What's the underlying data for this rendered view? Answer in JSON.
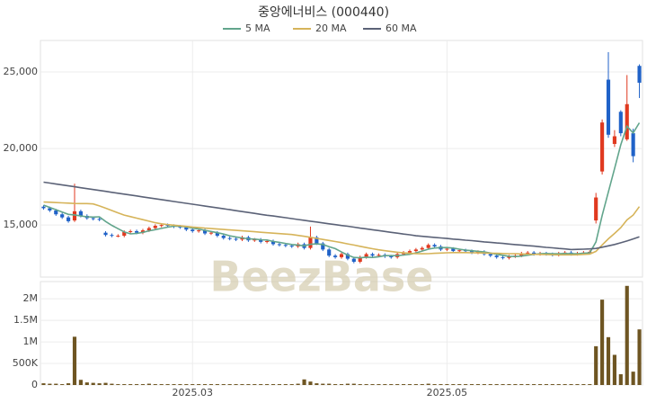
{
  "watermark": "BeezBase",
  "chart_data": [
    {
      "type": "candlestick",
      "title": "중앙에너비스 (000440)",
      "up_color": "#e0391f",
      "down_color": "#2062c8",
      "xlim": [
        -0.5,
        96.5
      ],
      "xticks": [
        {
          "value": 24,
          "label": "2025.03"
        },
        {
          "value": 65,
          "label": "2025.05"
        }
      ],
      "ylim": [
        11600,
        27060
      ],
      "yticks": [
        {
          "value": 15000,
          "label": "15,000"
        },
        {
          "value": 20000,
          "label": "20,000"
        },
        {
          "value": 25000,
          "label": "25,000"
        }
      ],
      "grid": true,
      "open": [
        16200,
        16100,
        15950,
        15700,
        15500,
        15300,
        15900,
        15600,
        15450,
        15400,
        14500,
        14350,
        14300,
        14300,
        14550,
        14600,
        14500,
        14650,
        14800,
        14950,
        15000,
        14950,
        14900,
        14850,
        14700,
        14600,
        14650,
        14450,
        14500,
        14300,
        14150,
        14100,
        14050,
        14200,
        14000,
        14050,
        13900,
        13950,
        13750,
        13700,
        13650,
        13600,
        13750,
        13500,
        14200,
        13800,
        13400,
        13000,
        12900,
        13100,
        12800,
        12600,
        12900,
        13100,
        13000,
        13050,
        12950,
        12900,
        13100,
        13200,
        13300,
        13400,
        13500,
        13700,
        13600,
        13400,
        13450,
        13300,
        13350,
        13300,
        13200,
        13250,
        13100,
        13000,
        12900,
        12850,
        12950,
        13000,
        13150,
        13200,
        13100,
        13150,
        13100,
        13050,
        13150,
        13200,
        13100,
        13150,
        13200,
        15300,
        18500,
        24500,
        20300,
        22400,
        20600,
        21000,
        25400
      ],
      "high": [
        16300,
        16200,
        16050,
        15800,
        15600,
        17700,
        16000,
        15700,
        15550,
        15500,
        14600,
        14450,
        14400,
        14650,
        14700,
        14700,
        14750,
        14900,
        15050,
        15100,
        15100,
        15050,
        15000,
        14950,
        14800,
        14750,
        14750,
        14600,
        14600,
        14400,
        14250,
        14200,
        14300,
        14300,
        14150,
        14150,
        14050,
        14050,
        13850,
        13800,
        13750,
        13850,
        13850,
        14900,
        14300,
        13900,
        13500,
        13100,
        13200,
        13200,
        12900,
        13000,
        13200,
        13200,
        13150,
        13150,
        13050,
        13200,
        13300,
        13400,
        13500,
        13600,
        13800,
        13800,
        13700,
        13550,
        13550,
        13450,
        13450,
        13400,
        13350,
        13350,
        13200,
        13100,
        13000,
        13050,
        13100,
        13250,
        13300,
        13300,
        13250,
        13250,
        13200,
        13250,
        13300,
        13300,
        13250,
        13300,
        13350,
        17100,
        21900,
        26300,
        21200,
        22500,
        24800,
        21300,
        25500
      ],
      "low": [
        16000,
        15850,
        15600,
        15400,
        15150,
        15200,
        15500,
        15350,
        15300,
        15250,
        14250,
        14200,
        14200,
        14200,
        14450,
        14400,
        14400,
        14550,
        14700,
        14850,
        14850,
        14800,
        14750,
        14600,
        14500,
        14500,
        14350,
        14350,
        14200,
        14050,
        14000,
        13950,
        13950,
        13900,
        13900,
        13800,
        13800,
        13650,
        13600,
        13550,
        13500,
        13500,
        13400,
        13400,
        13700,
        13300,
        12900,
        12800,
        12800,
        12700,
        12500,
        12500,
        12800,
        12900,
        12900,
        12850,
        12800,
        12800,
        13000,
        13100,
        13200,
        13300,
        13400,
        13500,
        13300,
        13300,
        13200,
        13200,
        13200,
        13100,
        13100,
        13000,
        12900,
        12800,
        12750,
        12750,
        12850,
        12900,
        13050,
        13000,
        13000,
        13000,
        12950,
        12950,
        13050,
        13000,
        13000,
        13050,
        13100,
        15100,
        18300,
        20700,
        20100,
        20800,
        20500,
        19100,
        23300
      ],
      "close": [
        16100,
        15950,
        15700,
        15500,
        15250,
        15900,
        15600,
        15450,
        15400,
        15350,
        14350,
        14300,
        14300,
        14550,
        14600,
        14500,
        14650,
        14800,
        14950,
        15000,
        14950,
        14900,
        14850,
        14700,
        14600,
        14650,
        14450,
        14500,
        14300,
        14150,
        14100,
        14050,
        14200,
        14000,
        14050,
        13900,
        13950,
        13750,
        13700,
        13650,
        13600,
        13750,
        13500,
        14200,
        13800,
        13400,
        13000,
        12900,
        13100,
        12800,
        12600,
        12900,
        13100,
        13000,
        13050,
        12950,
        12900,
        13100,
        13200,
        13300,
        13400,
        13500,
        13700,
        13600,
        13400,
        13450,
        13300,
        13350,
        13300,
        13200,
        13250,
        13100,
        13000,
        12900,
        12850,
        12950,
        13000,
        13150,
        13200,
        13100,
        13150,
        13100,
        13050,
        13150,
        13200,
        13100,
        13150,
        13200,
        13250,
        16800,
        21700,
        20900,
        20800,
        21000,
        22900,
        19500,
        24300
      ],
      "series": [
        {
          "name": "5 MA",
          "color": "#62a58c",
          "values": [
            16300,
            16150,
            16000,
            15850,
            15700,
            15660,
            15590,
            15540,
            15520,
            15540,
            15230,
            14980,
            14760,
            14550,
            14420,
            14450,
            14520,
            14620,
            14700,
            14780,
            14860,
            14920,
            14930,
            14880,
            14800,
            14740,
            14650,
            14580,
            14500,
            14410,
            14300,
            14220,
            14160,
            14100,
            14080,
            14040,
            14020,
            13930,
            13870,
            13790,
            13730,
            13690,
            13640,
            13740,
            13770,
            13730,
            13580,
            13460,
            13240,
            13040,
            12880,
            12860,
            12900,
            12880,
            12930,
            13000,
            13000,
            13000,
            13040,
            13090,
            13180,
            13300,
            13420,
            13500,
            13520,
            13530,
            13490,
            13420,
            13360,
            13320,
            13280,
            13240,
            13170,
            13090,
            13020,
            12960,
            12940,
            12970,
            13030,
            13080,
            13120,
            13140,
            13120,
            13120,
            13140,
            13120,
            13120,
            13160,
            13180,
            13900,
            15620,
            17160,
            18690,
            20240,
            21460,
            21020,
            21680
          ]
        },
        {
          "name": "20 MA",
          "color": "#d6b45a",
          "values": [
            16500,
            16490,
            16470,
            16450,
            16430,
            16410,
            16400,
            16400,
            16380,
            16250,
            16100,
            15950,
            15800,
            15650,
            15550,
            15450,
            15350,
            15250,
            15150,
            15080,
            15030,
            14990,
            14950,
            14910,
            14870,
            14840,
            14800,
            14770,
            14740,
            14710,
            14680,
            14650,
            14620,
            14590,
            14560,
            14530,
            14500,
            14470,
            14440,
            14410,
            14380,
            14320,
            14260,
            14200,
            14130,
            14060,
            13990,
            13920,
            13850,
            13770,
            13690,
            13610,
            13530,
            13450,
            13380,
            13320,
            13270,
            13220,
            13180,
            13150,
            13130,
            13120,
            13130,
            13150,
            13170,
            13190,
            13200,
            13200,
            13200,
            13190,
            13180,
            13170,
            13160,
            13150,
            13140,
            13130,
            13120,
            13110,
            13100,
            13090,
            13080,
            13070,
            13060,
            13050,
            13050,
            13050,
            13060,
            13080,
            13100,
            13280,
            13700,
            14100,
            14450,
            14830,
            15330,
            15650,
            16200
          ]
        },
        {
          "name": "60 MA",
          "color": "#5b6277",
          "values": [
            17800,
            17740,
            17680,
            17620,
            17560,
            17500,
            17440,
            17380,
            17320,
            17260,
            17200,
            17140,
            17080,
            17020,
            16960,
            16900,
            16840,
            16780,
            16720,
            16660,
            16600,
            16540,
            16480,
            16420,
            16360,
            16300,
            16240,
            16180,
            16120,
            16060,
            16000,
            15940,
            15880,
            15820,
            15760,
            15700,
            15640,
            15590,
            15530,
            15480,
            15420,
            15360,
            15310,
            15250,
            15200,
            15140,
            15080,
            15030,
            14970,
            14920,
            14860,
            14800,
            14750,
            14690,
            14640,
            14580,
            14520,
            14470,
            14410,
            14360,
            14300,
            14260,
            14230,
            14190,
            14160,
            14120,
            14080,
            14050,
            14010,
            13980,
            13940,
            13900,
            13870,
            13830,
            13800,
            13760,
            13720,
            13690,
            13650,
            13620,
            13580,
            13540,
            13510,
            13470,
            13440,
            13400,
            13410,
            13420,
            13440,
            13470,
            13550,
            13640,
            13730,
            13840,
            13960,
            14090,
            14230
          ]
        }
      ]
    },
    {
      "type": "bar",
      "color": "#6e5522",
      "xlim": [
        -0.5,
        96.5
      ],
      "ylim": [
        0,
        2400000
      ],
      "yticks": [
        0,
        {
          "value": 500000,
          "label": "500K"
        },
        {
          "value": 1000000,
          "label": "1M"
        },
        {
          "value": 1500000,
          "label": "1.5M"
        },
        {
          "value": 2000000,
          "label": "2M"
        }
      ],
      "values": [
        40000,
        30000,
        30000,
        20000,
        40000,
        1120000,
        120000,
        60000,
        50000,
        40000,
        50000,
        30000,
        20000,
        20000,
        20000,
        20000,
        20000,
        30000,
        20000,
        20000,
        20000,
        20000,
        20000,
        20000,
        20000,
        20000,
        20000,
        20000,
        20000,
        20000,
        20000,
        20000,
        20000,
        20000,
        20000,
        20000,
        20000,
        20000,
        20000,
        20000,
        20000,
        30000,
        130000,
        80000,
        40000,
        30000,
        30000,
        20000,
        20000,
        30000,
        30000,
        20000,
        20000,
        20000,
        20000,
        20000,
        20000,
        20000,
        20000,
        20000,
        20000,
        20000,
        30000,
        20000,
        20000,
        20000,
        20000,
        20000,
        20000,
        20000,
        20000,
        20000,
        20000,
        20000,
        20000,
        20000,
        20000,
        20000,
        20000,
        20000,
        20000,
        20000,
        20000,
        20000,
        20000,
        20000,
        20000,
        20000,
        20000,
        900000,
        1980000,
        1110000,
        700000,
        250000,
        2300000,
        310000,
        1290000
      ]
    }
  ]
}
